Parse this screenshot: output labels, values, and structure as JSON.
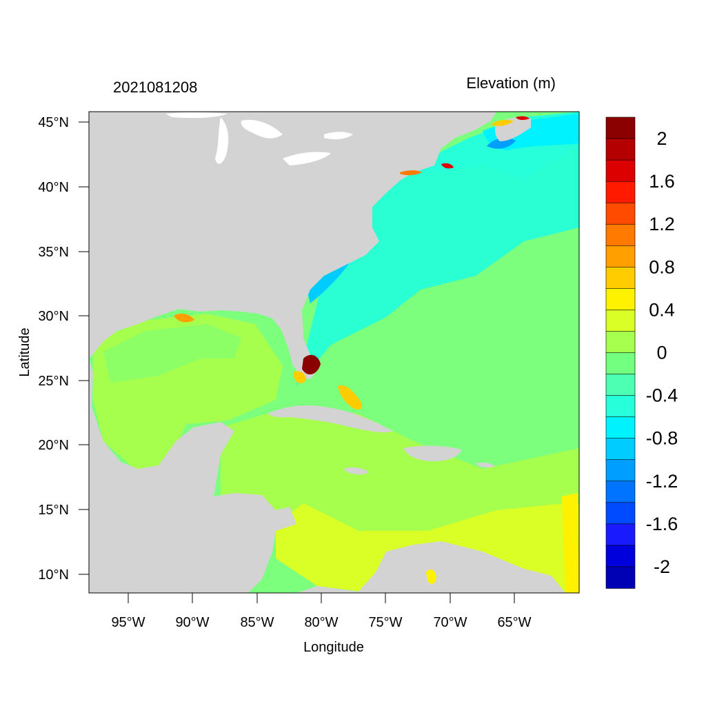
{
  "figure": {
    "timestamp": "2021081208",
    "title": "Elevation (m)",
    "xlabel": "Longitude",
    "ylabel": "Latitude"
  },
  "axes": {
    "x_ticks": [
      "95°W",
      "90°W",
      "85°W",
      "80°W",
      "75°W",
      "70°W",
      "65°W"
    ],
    "y_ticks": [
      "45°N",
      "40°N",
      "35°N",
      "30°N",
      "25°N",
      "20°N",
      "15°N",
      "10°N"
    ]
  },
  "colorbar": {
    "labels": [
      "2",
      "1.6",
      "1.2",
      "0.8",
      "0.4",
      "0",
      "-0.4",
      "-0.8",
      "-1.2",
      "-1.6",
      "-2"
    ],
    "colors": [
      "#8b0000",
      "#b40000",
      "#dd0000",
      "#ff1a00",
      "#ff4b00",
      "#ff7a00",
      "#ff9f00",
      "#ffcc00",
      "#fff200",
      "#d9ff26",
      "#a6ff4d",
      "#73ff80",
      "#4dffb3",
      "#26ffd9",
      "#00f2ff",
      "#00ccff",
      "#009fff",
      "#0073ff",
      "#004bff",
      "#1a1aff",
      "#0000dd",
      "#0000b4"
    ]
  },
  "map_colors": {
    "land": "#d3d3d3",
    "lake": "#ffffff"
  }
}
